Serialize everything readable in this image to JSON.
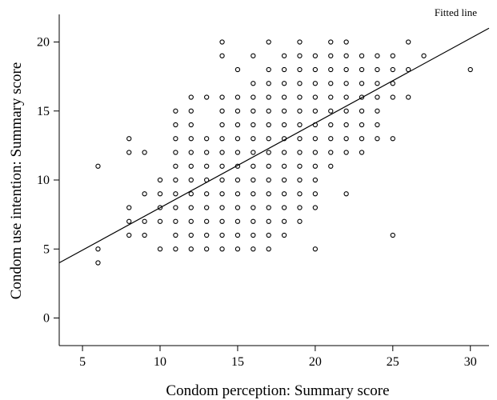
{
  "chart_data": {
    "type": "scatter",
    "title": "",
    "xlabel": "Condom perception: Summary score",
    "ylabel": "Condom use intention: Summary score",
    "xlim": [
      3.5,
      31.2
    ],
    "ylim": [
      -2,
      22
    ],
    "xticks": [
      5,
      10,
      15,
      20,
      25,
      30
    ],
    "yticks": [
      0,
      5,
      10,
      15,
      20
    ],
    "grid": false,
    "fitted_line": {
      "label": "Fitted line",
      "x": [
        3.5,
        31.2
      ],
      "y": [
        4.0,
        21.0
      ]
    },
    "points": [
      [
        6,
        11
      ],
      [
        6,
        5
      ],
      [
        6,
        4
      ],
      [
        8,
        13
      ],
      [
        8,
        12
      ],
      [
        8,
        8
      ],
      [
        8,
        7
      ],
      [
        8,
        6
      ],
      [
        9,
        12
      ],
      [
        9,
        9
      ],
      [
        9,
        7
      ],
      [
        9,
        6
      ],
      [
        10,
        10
      ],
      [
        10,
        9
      ],
      [
        10,
        8
      ],
      [
        10,
        7
      ],
      [
        10,
        5
      ],
      [
        11,
        15
      ],
      [
        11,
        14
      ],
      [
        11,
        13
      ],
      [
        11,
        12
      ],
      [
        11,
        11
      ],
      [
        11,
        10
      ],
      [
        11,
        9
      ],
      [
        11,
        8
      ],
      [
        11,
        7
      ],
      [
        11,
        6
      ],
      [
        11,
        5
      ],
      [
        12,
        16
      ],
      [
        12,
        15
      ],
      [
        12,
        14
      ],
      [
        12,
        13
      ],
      [
        12,
        12
      ],
      [
        12,
        11
      ],
      [
        12,
        10
      ],
      [
        12,
        9
      ],
      [
        12,
        8
      ],
      [
        12,
        7
      ],
      [
        12,
        6
      ],
      [
        12,
        5
      ],
      [
        13,
        16
      ],
      [
        13,
        13
      ],
      [
        13,
        12
      ],
      [
        13,
        11
      ],
      [
        13,
        10
      ],
      [
        13,
        9
      ],
      [
        13,
        8
      ],
      [
        13,
        7
      ],
      [
        13,
        6
      ],
      [
        13,
        5
      ],
      [
        14,
        20
      ],
      [
        14,
        19
      ],
      [
        14,
        16
      ],
      [
        14,
        15
      ],
      [
        14,
        14
      ],
      [
        14,
        13
      ],
      [
        14,
        12
      ],
      [
        14,
        11
      ],
      [
        14,
        10
      ],
      [
        14,
        9
      ],
      [
        14,
        8
      ],
      [
        14,
        7
      ],
      [
        14,
        6
      ],
      [
        14,
        5
      ],
      [
        15,
        18
      ],
      [
        15,
        16
      ],
      [
        15,
        15
      ],
      [
        15,
        14
      ],
      [
        15,
        13
      ],
      [
        15,
        12
      ],
      [
        15,
        11
      ],
      [
        15,
        10
      ],
      [
        15,
        9
      ],
      [
        15,
        8
      ],
      [
        15,
        7
      ],
      [
        15,
        6
      ],
      [
        15,
        5
      ],
      [
        16,
        19
      ],
      [
        16,
        17
      ],
      [
        16,
        16
      ],
      [
        16,
        15
      ],
      [
        16,
        14
      ],
      [
        16,
        13
      ],
      [
        16,
        12
      ],
      [
        16,
        11
      ],
      [
        16,
        10
      ],
      [
        16,
        9
      ],
      [
        16,
        8
      ],
      [
        16,
        7
      ],
      [
        16,
        6
      ],
      [
        16,
        5
      ],
      [
        17,
        20
      ],
      [
        17,
        18
      ],
      [
        17,
        17
      ],
      [
        17,
        16
      ],
      [
        17,
        15
      ],
      [
        17,
        14
      ],
      [
        17,
        13
      ],
      [
        17,
        12
      ],
      [
        17,
        11
      ],
      [
        17,
        10
      ],
      [
        17,
        9
      ],
      [
        17,
        8
      ],
      [
        17,
        7
      ],
      [
        17,
        6
      ],
      [
        17,
        5
      ],
      [
        18,
        19
      ],
      [
        18,
        18
      ],
      [
        18,
        17
      ],
      [
        18,
        16
      ],
      [
        18,
        15
      ],
      [
        18,
        14
      ],
      [
        18,
        13
      ],
      [
        18,
        12
      ],
      [
        18,
        11
      ],
      [
        18,
        10
      ],
      [
        18,
        9
      ],
      [
        18,
        8
      ],
      [
        18,
        7
      ],
      [
        18,
        6
      ],
      [
        19,
        20
      ],
      [
        19,
        19
      ],
      [
        19,
        18
      ],
      [
        19,
        17
      ],
      [
        19,
        16
      ],
      [
        19,
        15
      ],
      [
        19,
        14
      ],
      [
        19,
        13
      ],
      [
        19,
        12
      ],
      [
        19,
        11
      ],
      [
        19,
        10
      ],
      [
        19,
        9
      ],
      [
        19,
        8
      ],
      [
        19,
        7
      ],
      [
        20,
        19
      ],
      [
        20,
        18
      ],
      [
        20,
        17
      ],
      [
        20,
        16
      ],
      [
        20,
        15
      ],
      [
        20,
        14
      ],
      [
        20,
        13
      ],
      [
        20,
        12
      ],
      [
        20,
        11
      ],
      [
        20,
        10
      ],
      [
        20,
        9
      ],
      [
        20,
        8
      ],
      [
        20,
        5
      ],
      [
        21,
        20
      ],
      [
        21,
        19
      ],
      [
        21,
        18
      ],
      [
        21,
        17
      ],
      [
        21,
        16
      ],
      [
        21,
        15
      ],
      [
        21,
        14
      ],
      [
        21,
        13
      ],
      [
        21,
        12
      ],
      [
        21,
        11
      ],
      [
        22,
        20
      ],
      [
        22,
        19
      ],
      [
        22,
        18
      ],
      [
        22,
        17
      ],
      [
        22,
        16
      ],
      [
        22,
        15
      ],
      [
        22,
        14
      ],
      [
        22,
        13
      ],
      [
        22,
        12
      ],
      [
        22,
        9
      ],
      [
        23,
        19
      ],
      [
        23,
        18
      ],
      [
        23,
        17
      ],
      [
        23,
        16
      ],
      [
        23,
        15
      ],
      [
        23,
        14
      ],
      [
        23,
        13
      ],
      [
        23,
        12
      ],
      [
        24,
        19
      ],
      [
        24,
        18
      ],
      [
        24,
        17
      ],
      [
        24,
        16
      ],
      [
        24,
        15
      ],
      [
        24,
        14
      ],
      [
        24,
        13
      ],
      [
        25,
        19
      ],
      [
        25,
        18
      ],
      [
        25,
        17
      ],
      [
        25,
        16
      ],
      [
        25,
        13
      ],
      [
        25,
        6
      ],
      [
        26,
        20
      ],
      [
        26,
        18
      ],
      [
        26,
        16
      ],
      [
        27,
        19
      ],
      [
        30,
        18
      ]
    ]
  }
}
